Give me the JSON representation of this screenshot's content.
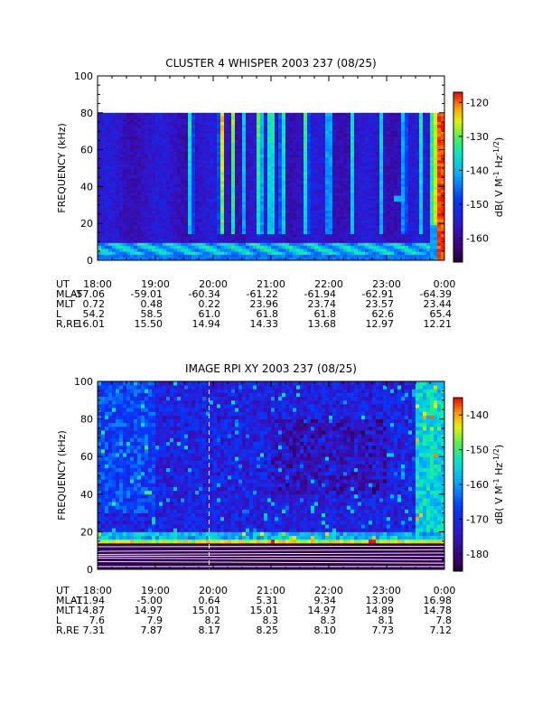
{
  "chart_data": [
    {
      "type": "heatmap",
      "title": "CLUSTER 4 WHISPER 2003 237 (08/25)",
      "ylabel": "FREQUENCY (kHz)",
      "ylim": [
        0,
        100
      ],
      "yticks": [
        0,
        20,
        40,
        60,
        80,
        100
      ],
      "xlim_hours": [
        18,
        24
      ],
      "xticks": [
        "18:00",
        "19:00",
        "20:00",
        "21:00",
        "22:00",
        "23:00",
        "0:00"
      ],
      "data_ceiling_khz": 80,
      "colorbar": {
        "label": "dB( V M⁻¹ Hz⁻¹ᐟ²)",
        "label_parts": [
          "dB( V M",
          "-1",
          " Hz",
          "-1/2",
          ")"
        ],
        "range": [
          -167,
          -117
        ],
        "ticks": [
          -120,
          -130,
          -140,
          -150,
          -160
        ]
      },
      "ephemeris": [
        {
          "label": "UT",
          "values": [
            "18:00",
            "19:00",
            "20:00",
            "21:00",
            "22:00",
            "23:00",
            "0:00"
          ]
        },
        {
          "label": "MLAT",
          "values": [
            "-57.06",
            "-59.01",
            "-60.34",
            "-61.22",
            "-61.94",
            "-62.91",
            "-64.39"
          ]
        },
        {
          "label": "MLT",
          "values": [
            "0.72",
            "0.48",
            "0.22",
            "23.96",
            "23.74",
            "23.57",
            "23.44"
          ]
        },
        {
          "label": "L",
          "values": [
            "54.2",
            "58.5",
            "61.0",
            "61.8",
            "61.8",
            "62.6",
            "65.4"
          ]
        },
        {
          "label": "R,RE",
          "values": [
            "16.01",
            "15.50",
            "14.94",
            "14.33",
            "13.68",
            "12.97",
            "12.21"
          ]
        }
      ]
    },
    {
      "type": "heatmap",
      "title": "IMAGE RPI XY 2003 237 (08/25)",
      "ylabel": "FREQUENCY (kHz)",
      "ylim": [
        0,
        100
      ],
      "yticks": [
        0,
        20,
        40,
        60,
        80,
        100
      ],
      "xlim_hours": [
        18,
        24
      ],
      "xticks": [
        "18:00",
        "19:00",
        "20:00",
        "21:00",
        "22:00",
        "23:00",
        "0:00"
      ],
      "colorbar": {
        "label": "dB( V M⁻¹ Hz⁻¹ᐟ²)",
        "label_parts": [
          "dB( V M",
          "-1",
          " Hz",
          "-1/2",
          ")"
        ],
        "range": [
          -185,
          -135
        ],
        "ticks": [
          -140,
          -150,
          -160,
          -170,
          -180
        ]
      },
      "ephemeris": [
        {
          "label": "UT",
          "values": [
            "18:00",
            "19:00",
            "20:00",
            "21:00",
            "22:00",
            "23:00",
            "0:00"
          ]
        },
        {
          "label": "MLAT",
          "values": [
            "-11.94",
            "-5.00",
            "0.64",
            "5.31",
            "9.34",
            "13.09",
            "16.98"
          ]
        },
        {
          "label": "MLT",
          "values": [
            "14.87",
            "14.97",
            "15.01",
            "15.01",
            "14.97",
            "14.89",
            "14.78"
          ]
        },
        {
          "label": "L",
          "values": [
            "7.6",
            "7.9",
            "8.2",
            "8.3",
            "8.3",
            "8.1",
            "7.8"
          ]
        },
        {
          "label": "R,RE",
          "values": [
            "7.31",
            "7.87",
            "8.17",
            "8.25",
            "8.10",
            "7.73",
            "7.12"
          ]
        }
      ]
    }
  ]
}
